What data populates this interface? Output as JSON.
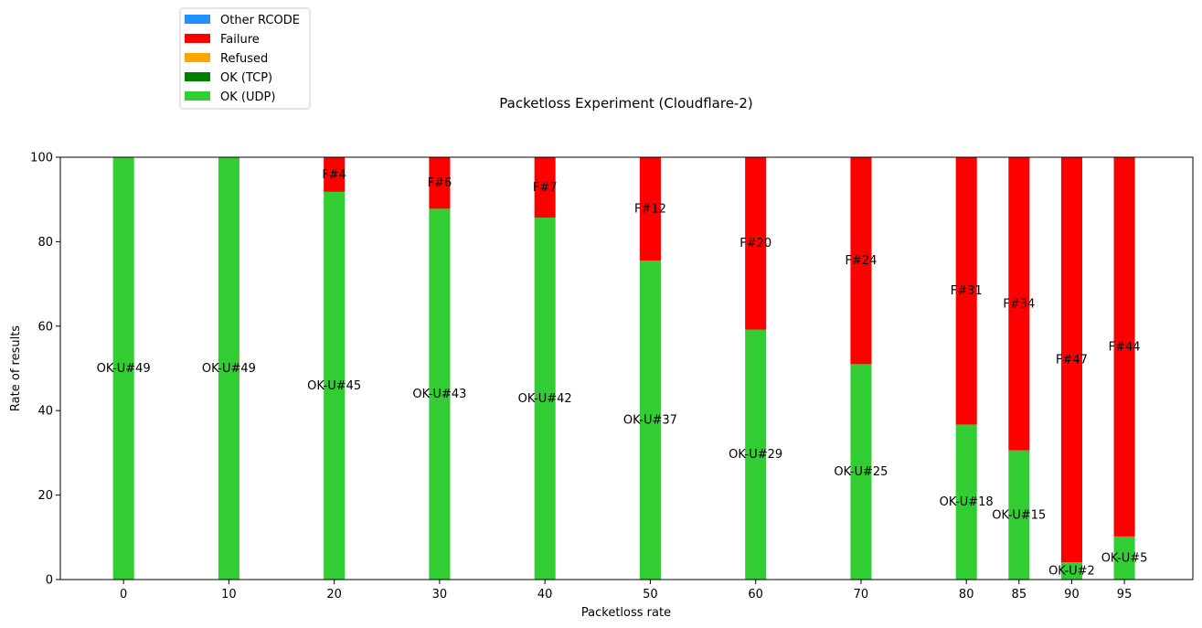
{
  "chart_data": {
    "type": "bar",
    "stacked": true,
    "title": "Packetloss Experiment (Cloudflare-2)",
    "xlabel": "Packetloss rate",
    "ylabel": "Rate of results",
    "ylim": [
      0,
      100
    ],
    "yticks": [
      0,
      20,
      40,
      60,
      80,
      100
    ],
    "xlim": [
      -6,
      101.5
    ],
    "x": [
      0,
      10,
      20,
      30,
      40,
      50,
      60,
      70,
      80,
      85,
      90,
      95
    ],
    "x_tick_labels": [
      "0",
      "10",
      "20",
      "30",
      "40",
      "50",
      "60",
      "70",
      "80",
      "85",
      "90",
      "95"
    ],
    "bar_width": 2,
    "legend_position": "top-left, outside plot",
    "legend": [
      {
        "name": "Other RCODE",
        "color": "#1e90ff"
      },
      {
        "name": "Failure",
        "color": "#ff0000"
      },
      {
        "name": "Refused",
        "color": "#ffa500"
      },
      {
        "name": "OK (TCP)",
        "color": "#008000"
      },
      {
        "name": "OK (UDP)",
        "color": "#32cd32"
      }
    ],
    "series": [
      {
        "name": "OK (UDP)",
        "color": "#32cd32",
        "values": [
          100,
          100,
          91.8,
          87.8,
          85.7,
          75.5,
          59.2,
          51.0,
          36.7,
          30.6,
          4.1,
          10.2
        ],
        "labels": [
          "OK-U#49",
          "OK-U#49",
          "OK-U#45",
          "OK-U#43",
          "OK-U#42",
          "OK-U#37",
          "OK-U#29",
          "OK-U#25",
          "OK-U#18",
          "OK-U#15",
          "OK-U#2",
          "OK-U#5"
        ]
      },
      {
        "name": "Failure",
        "color": "#ff0000",
        "values": [
          0,
          0,
          8.2,
          12.2,
          14.3,
          24.5,
          40.8,
          49.0,
          63.3,
          69.4,
          95.9,
          89.8
        ],
        "labels": [
          "",
          "",
          "F#4",
          "F#6",
          "F#7",
          "F#12",
          "F#20",
          "F#24",
          "F#31",
          "F#34",
          "F#47",
          "F#44"
        ]
      }
    ]
  }
}
